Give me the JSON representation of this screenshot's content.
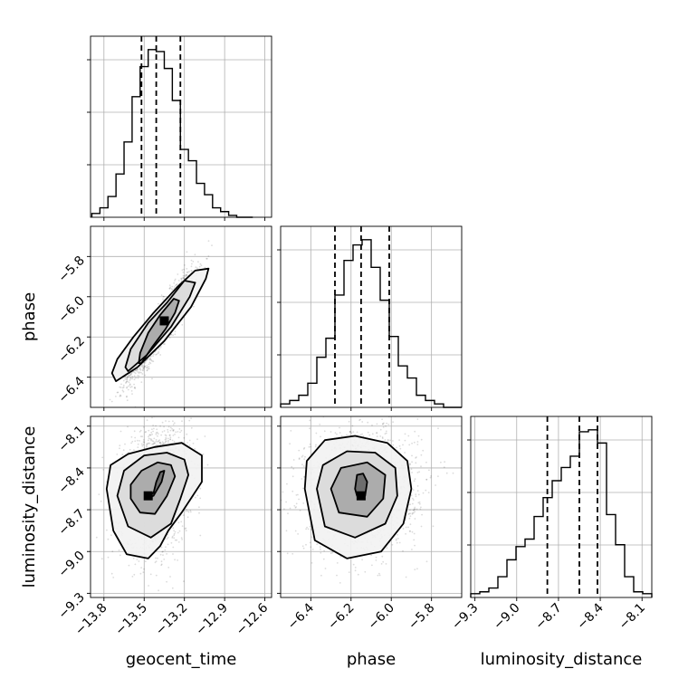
{
  "chart_data": {
    "type": "corner",
    "parameters": [
      "geocent_time",
      "phase",
      "luminosity_distance"
    ],
    "axis_labels": {
      "x": [
        "geocent_time",
        "phase",
        "luminosity_distance"
      ],
      "y_left": [
        "phase",
        "luminosity_distance"
      ]
    },
    "ranges": {
      "geocent_time": [
        -13.9,
        -12.55
      ],
      "phase": [
        -6.55,
        -5.65
      ],
      "luminosity_distance": [
        -9.33,
        -8.03
      ]
    },
    "ticks": {
      "geocent_time": [
        -13.8,
        -13.5,
        -13.2,
        -12.9,
        -12.6
      ],
      "phase": [
        -6.4,
        -6.2,
        -6.0,
        -5.8
      ],
      "luminosity_distance": [
        -9.3,
        -9.0,
        -8.7,
        -8.4,
        -8.1
      ]
    },
    "tick_labels": {
      "geocent_time": [
        "−13.8",
        "−13.5",
        "−13.2",
        "−12.9",
        "−12.6"
      ],
      "phase": [
        "−6.4",
        "−6.2",
        "−6.0",
        "−5.8"
      ],
      "luminosity_distance": [
        "−9.3",
        "−9.0",
        "−8.7",
        "−8.4",
        "−8.1"
      ]
    },
    "quantiles": {
      "geocent_time": [
        -13.52,
        -13.41,
        -13.23
      ],
      "phase": [
        -6.28,
        -6.15,
        -6.01
      ],
      "luminosity_distance": [
        -8.78,
        -8.55,
        -8.42
      ]
    },
    "histograms": {
      "geocent_time": {
        "edges": [
          -13.89,
          -13.83,
          -13.77,
          -13.71,
          -13.65,
          -13.59,
          -13.53,
          -13.47,
          -13.41,
          -13.35,
          -13.29,
          -13.23,
          -13.17,
          -13.11,
          -13.05,
          -12.99,
          -12.93,
          -12.87,
          -12.81,
          -12.75,
          -12.69
        ],
        "counts": [
          2,
          5,
          11,
          23,
          40,
          64,
          80,
          89,
          88,
          79,
          62,
          36,
          30,
          18,
          12,
          5,
          3,
          1,
          0,
          0
        ]
      },
      "phase": {
        "edges": [
          -6.55,
          -6.505,
          -6.46,
          -6.415,
          -6.37,
          -6.325,
          -6.28,
          -6.235,
          -6.19,
          -6.145,
          -6.1,
          -6.055,
          -6.01,
          -5.965,
          -5.92,
          -5.875,
          -5.83,
          -5.785,
          -5.74,
          -5.695,
          -5.65
        ],
        "counts": [
          2,
          4,
          7,
          14,
          29,
          40,
          65,
          85,
          94,
          97,
          81,
          62,
          41,
          24,
          17,
          7,
          4,
          2,
          0,
          0
        ]
      },
      "luminosity_distance": {
        "edges": [
          -9.33,
          -9.265,
          -9.2,
          -9.135,
          -9.07,
          -9.005,
          -8.94,
          -8.875,
          -8.81,
          -8.745,
          -8.68,
          -8.615,
          -8.55,
          -8.485,
          -8.42,
          -8.355,
          -8.29,
          -8.225,
          -8.16,
          -8.095,
          -8.03
        ],
        "counts": [
          2,
          3,
          5,
          11,
          20,
          27,
          31,
          43,
          53,
          62,
          69,
          75,
          88,
          89,
          82,
          44,
          28,
          11,
          3,
          2
        ]
      }
    },
    "scatter_2d": [
      {
        "x_param": "geocent_time",
        "y_param": "phase",
        "center": [
          -13.38,
          -6.15
        ],
        "spread": [
          0.12,
          0.13
        ],
        "correlation": 0.92,
        "peak": [
          -13.35,
          -6.12
        ],
        "contours": [
          [
            [
              -13.52,
              -6.33
            ],
            [
              -13.44,
              -6.25
            ],
            [
              -13.34,
              -6.16
            ],
            [
              -13.27,
              -6.08
            ],
            [
              -13.24,
              -6.02
            ],
            [
              -13.28,
              -6.01
            ],
            [
              -13.38,
              -6.09
            ],
            [
              -13.47,
              -6.18
            ],
            [
              -13.53,
              -6.28
            ],
            [
              -13.54,
              -6.33
            ]
          ],
          [
            [
              -13.62,
              -6.37
            ],
            [
              -13.48,
              -6.29
            ],
            [
              -13.3,
              -6.15
            ],
            [
              -13.16,
              -6.0
            ],
            [
              -13.12,
              -5.93
            ],
            [
              -13.2,
              -5.92
            ],
            [
              -13.33,
              -6.03
            ],
            [
              -13.47,
              -6.13
            ],
            [
              -13.6,
              -6.26
            ],
            [
              -13.64,
              -6.35
            ]
          ],
          [
            [
              -13.71,
              -6.42
            ],
            [
              -13.55,
              -6.35
            ],
            [
              -13.35,
              -6.22
            ],
            [
              -13.15,
              -6.05
            ],
            [
              -13.04,
              -5.91
            ],
            [
              -13.02,
              -5.86
            ],
            [
              -13.12,
              -5.87
            ],
            [
              -13.25,
              -5.95
            ],
            [
              -13.43,
              -6.08
            ],
            [
              -13.58,
              -6.2
            ],
            [
              -13.7,
              -6.31
            ],
            [
              -13.74,
              -6.38
            ]
          ]
        ]
      },
      {
        "x_param": "geocent_time",
        "y_param": "luminosity_distance",
        "center": [
          -13.42,
          -8.55
        ],
        "spread": [
          0.13,
          0.22
        ],
        "correlation": 0.2,
        "peak": [
          -13.47,
          -8.6
        ],
        "contours": [
          [
            [
              -13.49,
              -8.6
            ],
            [
              -13.43,
              -8.58
            ],
            [
              -13.41,
              -8.5
            ],
            [
              -13.38,
              -8.43
            ],
            [
              -13.35,
              -8.42
            ],
            [
              -13.37,
              -8.5
            ],
            [
              -13.43,
              -8.6
            ],
            [
              -13.49,
              -8.62
            ]
          ],
          [
            [
              -13.6,
              -8.62
            ],
            [
              -13.53,
              -8.72
            ],
            [
              -13.42,
              -8.73
            ],
            [
              -13.33,
              -8.6
            ],
            [
              -13.27,
              -8.46
            ],
            [
              -13.3,
              -8.38
            ],
            [
              -13.4,
              -8.36
            ],
            [
              -13.52,
              -8.42
            ],
            [
              -13.6,
              -8.52
            ]
          ],
          [
            [
              -13.7,
              -8.6
            ],
            [
              -13.62,
              -8.82
            ],
            [
              -13.45,
              -8.9
            ],
            [
              -13.3,
              -8.8
            ],
            [
              -13.23,
              -8.62
            ],
            [
              -13.17,
              -8.45
            ],
            [
              -13.2,
              -8.34
            ],
            [
              -13.33,
              -8.29
            ],
            [
              -13.5,
              -8.31
            ],
            [
              -13.65,
              -8.42
            ]
          ],
          [
            [
              -13.78,
              -8.55
            ],
            [
              -13.73,
              -8.85
            ],
            [
              -13.63,
              -9.02
            ],
            [
              -13.47,
              -9.05
            ],
            [
              -13.38,
              -8.96
            ],
            [
              -13.32,
              -8.85
            ],
            [
              -13.22,
              -8.72
            ],
            [
              -13.07,
              -8.5
            ],
            [
              -13.07,
              -8.31
            ],
            [
              -13.22,
              -8.22
            ],
            [
              -13.42,
              -8.25
            ],
            [
              -13.62,
              -8.3
            ],
            [
              -13.75,
              -8.38
            ]
          ]
        ]
      },
      {
        "x_param": "phase",
        "y_param": "luminosity_distance",
        "center": [
          -6.15,
          -8.55
        ],
        "spread": [
          0.14,
          0.22
        ],
        "correlation": 0.05,
        "peak": [
          -6.15,
          -8.6
        ],
        "contours": [
          [
            [
              -6.17,
              -8.6
            ],
            [
              -6.13,
              -8.6
            ],
            [
              -6.12,
              -8.5
            ],
            [
              -6.14,
              -8.44
            ],
            [
              -6.17,
              -8.45
            ],
            [
              -6.18,
              -8.55
            ]
          ],
          [
            [
              -6.3,
              -8.55
            ],
            [
              -6.26,
              -8.72
            ],
            [
              -6.12,
              -8.75
            ],
            [
              -6.04,
              -8.62
            ],
            [
              -6.03,
              -8.45
            ],
            [
              -6.12,
              -8.36
            ],
            [
              -6.25,
              -8.4
            ]
          ],
          [
            [
              -6.37,
              -8.55
            ],
            [
              -6.33,
              -8.82
            ],
            [
              -6.18,
              -8.9
            ],
            [
              -6.03,
              -8.8
            ],
            [
              -5.97,
              -8.6
            ],
            [
              -5.98,
              -8.4
            ],
            [
              -6.08,
              -8.29
            ],
            [
              -6.22,
              -8.28
            ],
            [
              -6.34,
              -8.38
            ]
          ],
          [
            [
              -6.43,
              -8.55
            ],
            [
              -6.38,
              -8.92
            ],
            [
              -6.22,
              -9.05
            ],
            [
              -6.05,
              -9.0
            ],
            [
              -5.94,
              -8.8
            ],
            [
              -5.9,
              -8.55
            ],
            [
              -5.92,
              -8.35
            ],
            [
              -6.02,
              -8.22
            ],
            [
              -6.18,
              -8.17
            ],
            [
              -6.33,
              -8.2
            ],
            [
              -6.42,
              -8.35
            ]
          ]
        ]
      }
    ]
  }
}
